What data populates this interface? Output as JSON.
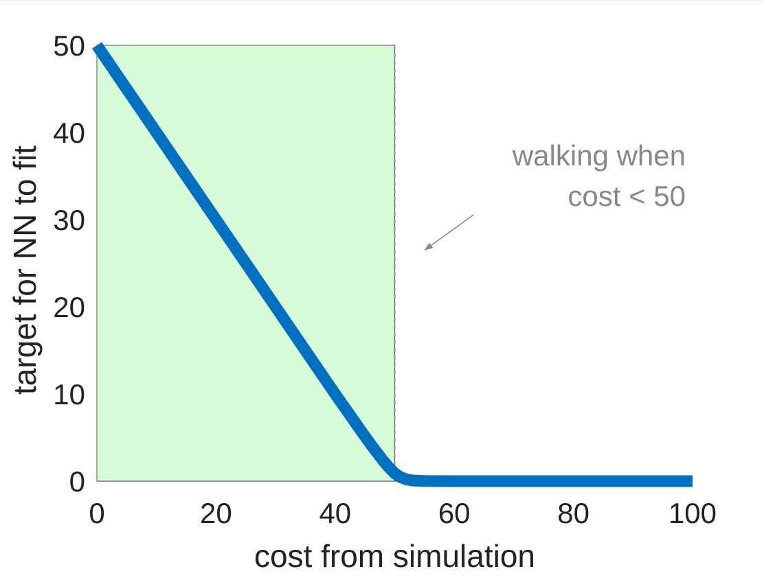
{
  "chart_data": {
    "type": "line",
    "xlabel": "cost from simulation",
    "ylabel": "target for NN to fit",
    "xlim": [
      0,
      100
    ],
    "ylim": [
      0,
      50
    ],
    "x_ticks": [
      0,
      20,
      40,
      60,
      80,
      100
    ],
    "y_ticks": [
      0,
      10,
      20,
      30,
      40,
      50
    ],
    "x_tick_labels": [
      "0",
      "20",
      "40",
      "60",
      "80",
      "100"
    ],
    "y_tick_labels": [
      "0",
      "10",
      "20",
      "30",
      "40",
      "50"
    ],
    "grid": false,
    "legend": "none",
    "series": [
      {
        "color": "#0070c0",
        "x": [
          0,
          5,
          10,
          15,
          20,
          25,
          30,
          35,
          40,
          44,
          46,
          47,
          48,
          49,
          50,
          51,
          52,
          53,
          55,
          60,
          70,
          80,
          90,
          100
        ],
        "y": [
          50,
          45,
          40,
          35,
          30,
          25,
          20,
          15,
          10,
          6.1,
          4.2,
          3.3,
          2.4,
          1.6,
          0.9,
          0.45,
          0.2,
          0.08,
          0.02,
          0,
          0,
          0,
          0,
          0
        ]
      }
    ],
    "shaded_region": {
      "x_range": [
        0,
        50
      ],
      "color": "#d8fcd8"
    },
    "threshold_line": {
      "x": 50,
      "style": "dashed",
      "color": "#888888"
    },
    "annotation": {
      "lines": [
        "walking when",
        "cost < 50"
      ],
      "color": "#888888",
      "arrow_target": [
        55,
        26.5
      ]
    }
  }
}
